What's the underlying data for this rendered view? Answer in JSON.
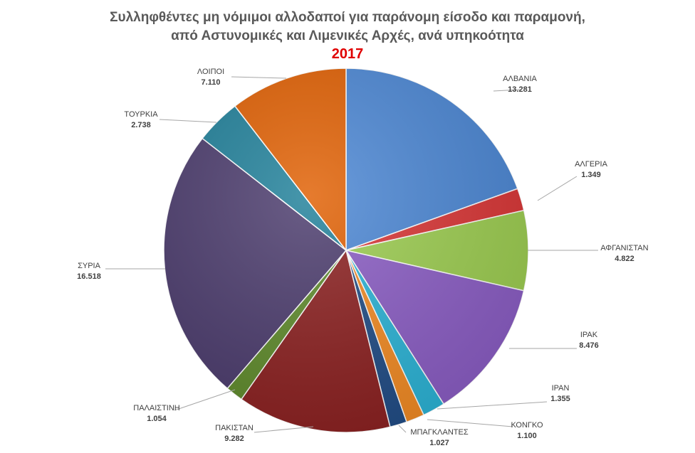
{
  "chart_data": {
    "type": "pie",
    "title_lines": [
      "Συλληφθέντες μη νόμιμοι αλλοδαποί  για παράνομη  είσοδο και παραμονή,",
      "από Αστυνομικές και Λιμενικές Αρχές, ανά υπηκοότητα"
    ],
    "subtitle": "2017",
    "slices": [
      {
        "label": "ΑΛΒΑΝΙΑ",
        "value": 13281,
        "value_label": "13.281",
        "color": "#4a86d4"
      },
      {
        "label": "ΑΛΓΕΡΙΑ",
        "value": 1349,
        "value_label": "1.349",
        "color": "#d93434"
      },
      {
        "label": "ΑΦΓΑΝΙΣΤΑΝ",
        "value": 4822,
        "value_label": "4.822",
        "color": "#9ccd4f"
      },
      {
        "label": "ΙΡΑΚ",
        "value": 8476,
        "value_label": "8.476",
        "color": "#8a5cc4"
      },
      {
        "label": "ΙΡΑΝ",
        "value": 1355,
        "value_label": "1.355",
        "color": "#2ab3d6"
      },
      {
        "label": "ΚΟΝΓΚΟ",
        "value": 1100,
        "value_label": "1.100",
        "color": "#f28a22"
      },
      {
        "label": "ΜΠΑΓΚΛΑΝΤΕΣ",
        "value": 1027,
        "value_label": "1.027",
        "color": "#1f4b85"
      },
      {
        "label": "ΠΑΚΙΣΤΑΝ",
        "value": 9282,
        "value_label": "9.282",
        "color": "#8b1f1f"
      },
      {
        "label": "ΠΑΛΑΙΣΤΙΝΗ",
        "value": 1054,
        "value_label": "1.054",
        "color": "#5e8a2a"
      },
      {
        "label": "ΣΥΡΙΑ",
        "value": 16518,
        "value_label": "16.518",
        "color": "#4a3a6c"
      },
      {
        "label": "ΤΟΥΡΚΙΑ",
        "value": 2738,
        "value_label": "2.738",
        "color": "#1e7f99"
      },
      {
        "label": "ΛΟΙΠΟΙ",
        "value": 7110,
        "value_label": "7.110",
        "color": "#e05e00"
      }
    ]
  }
}
